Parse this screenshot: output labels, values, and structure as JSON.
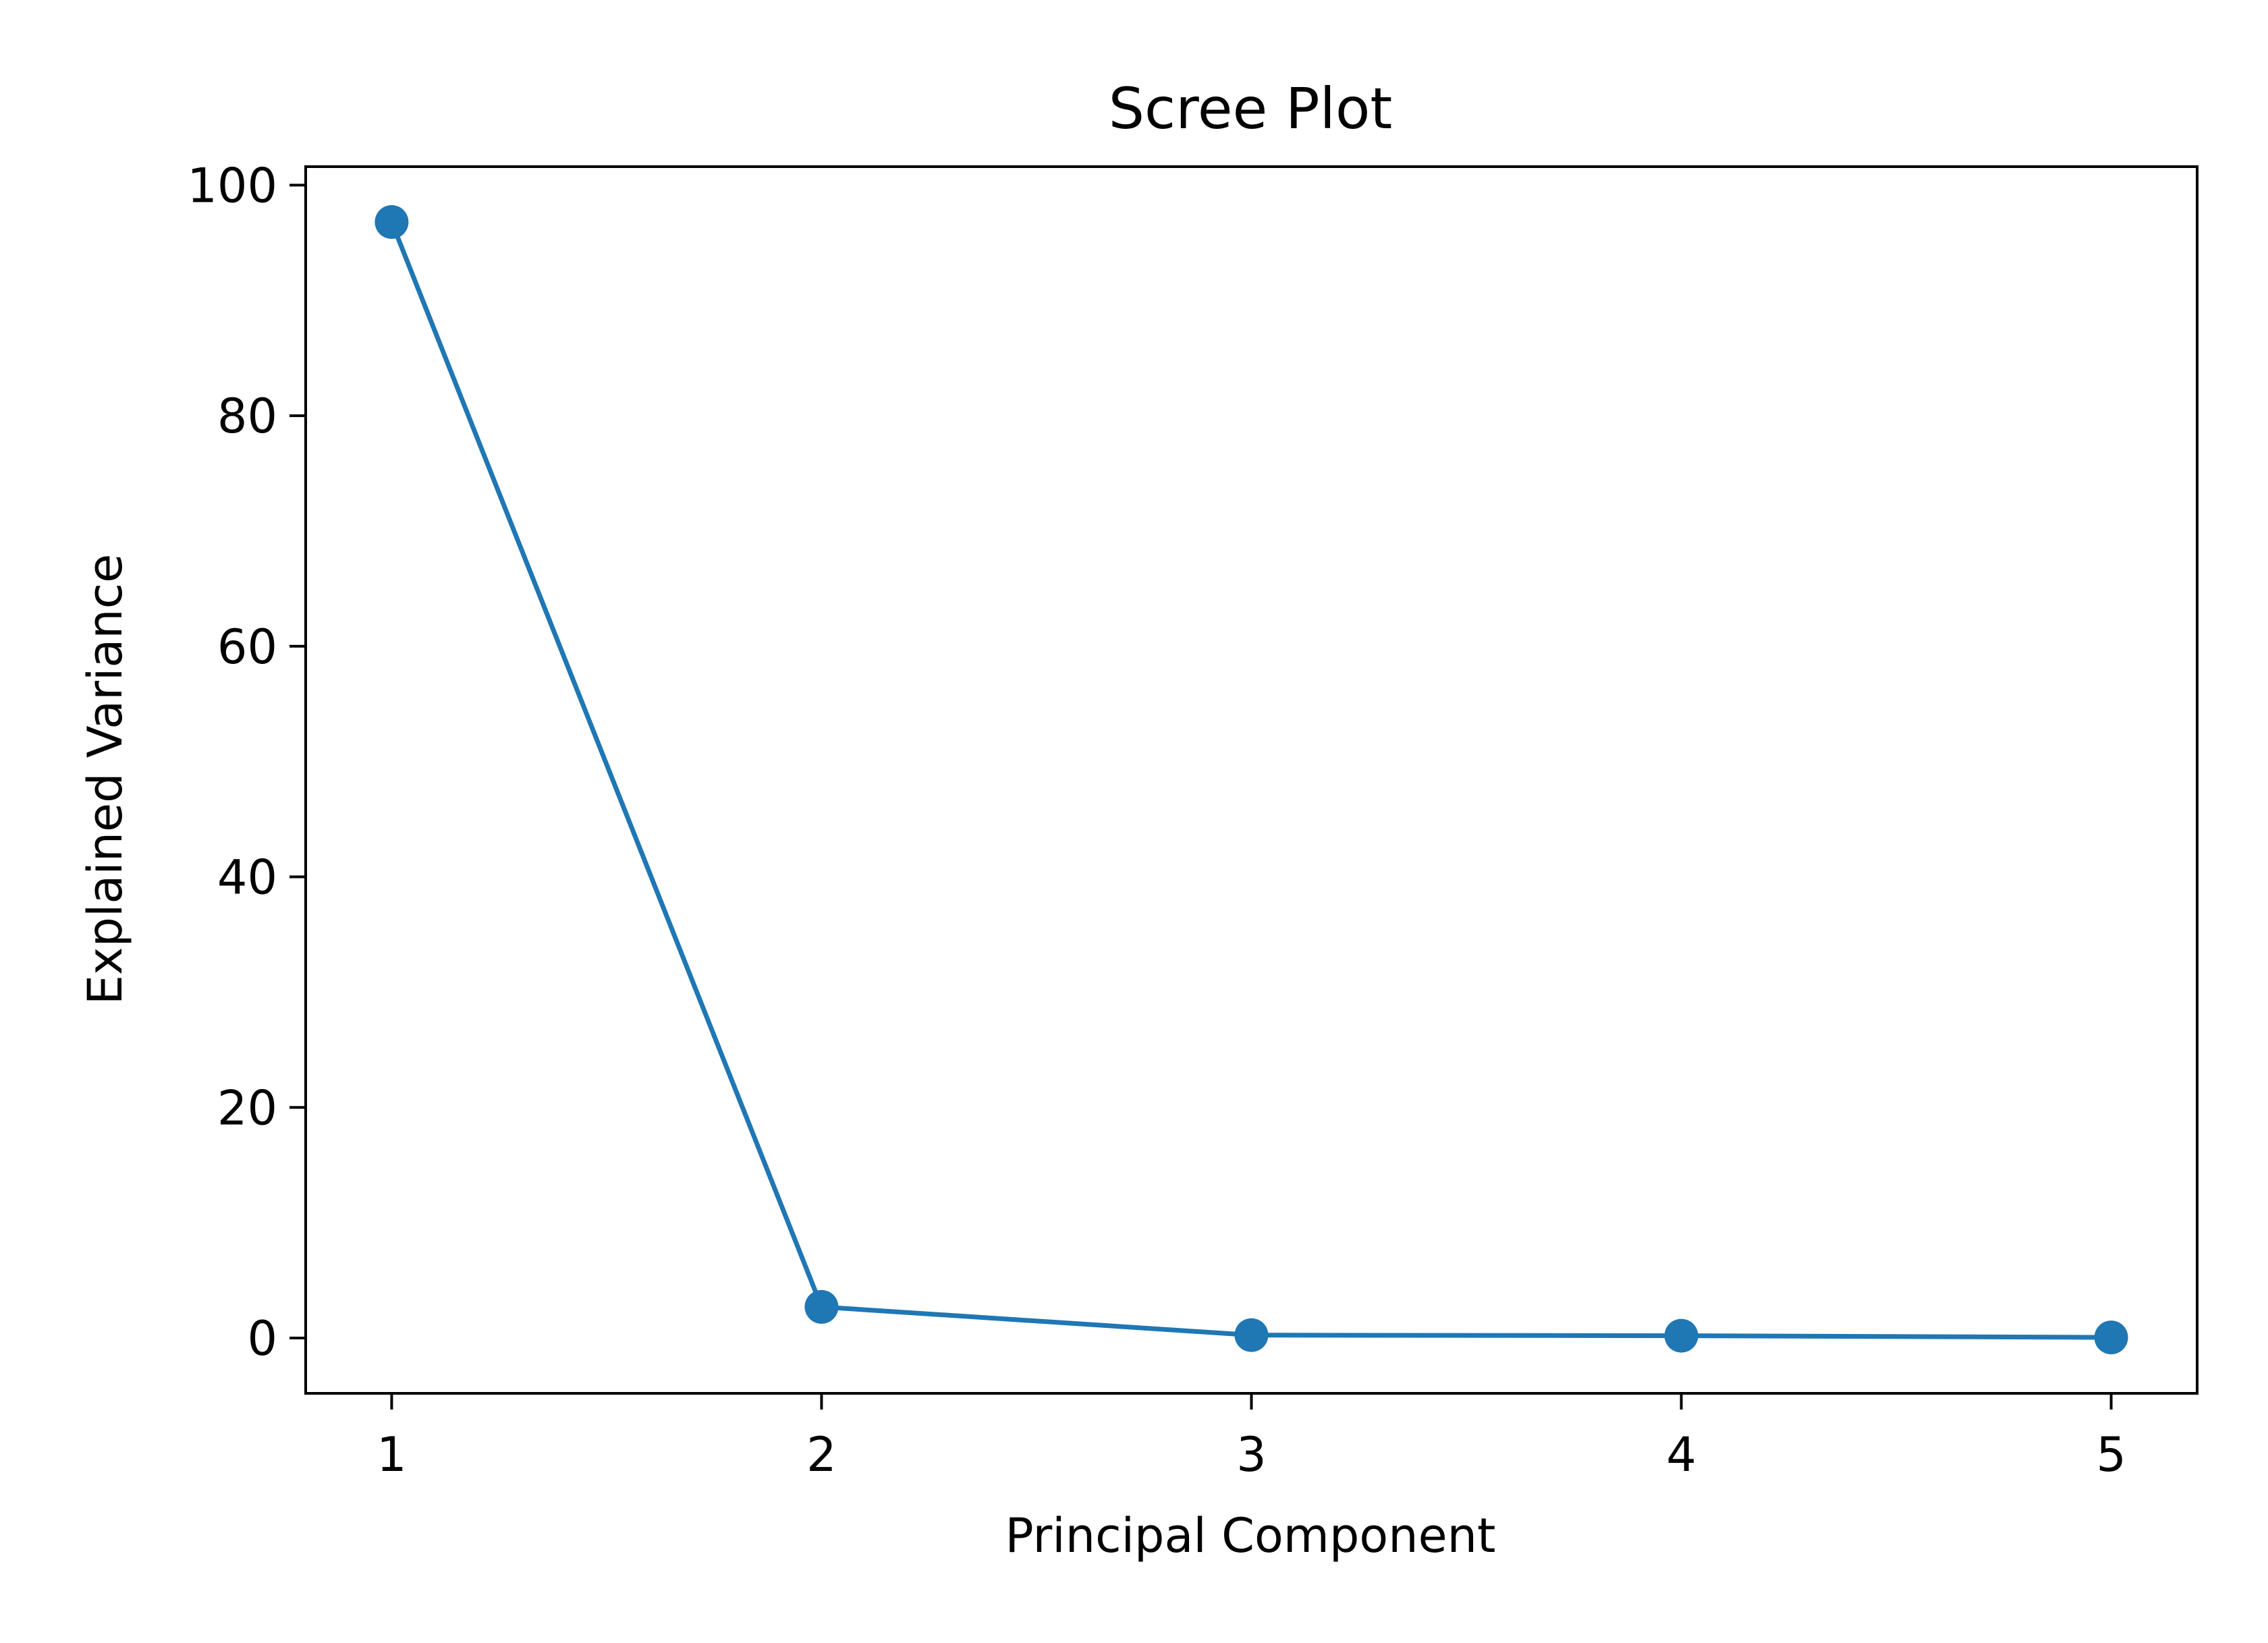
{
  "chart_data": {
    "type": "line",
    "title": "Scree Plot",
    "xlabel": "Principal Component",
    "ylabel": "Explained Variance",
    "x": [
      1,
      2,
      3,
      4,
      5
    ],
    "series": [
      {
        "values": [
          96.8,
          2.7,
          0.25,
          0.2,
          0.05
        ],
        "color": "#1f77b4",
        "marker": "circle"
      }
    ],
    "xticks": [
      1,
      2,
      3,
      4,
      5
    ],
    "yticks": [
      0,
      20,
      40,
      60,
      80,
      100
    ],
    "xlim": [
      0.8,
      5.2
    ],
    "ylim": [
      -4.8,
      101.6
    ],
    "grid": false,
    "legend": "none"
  }
}
